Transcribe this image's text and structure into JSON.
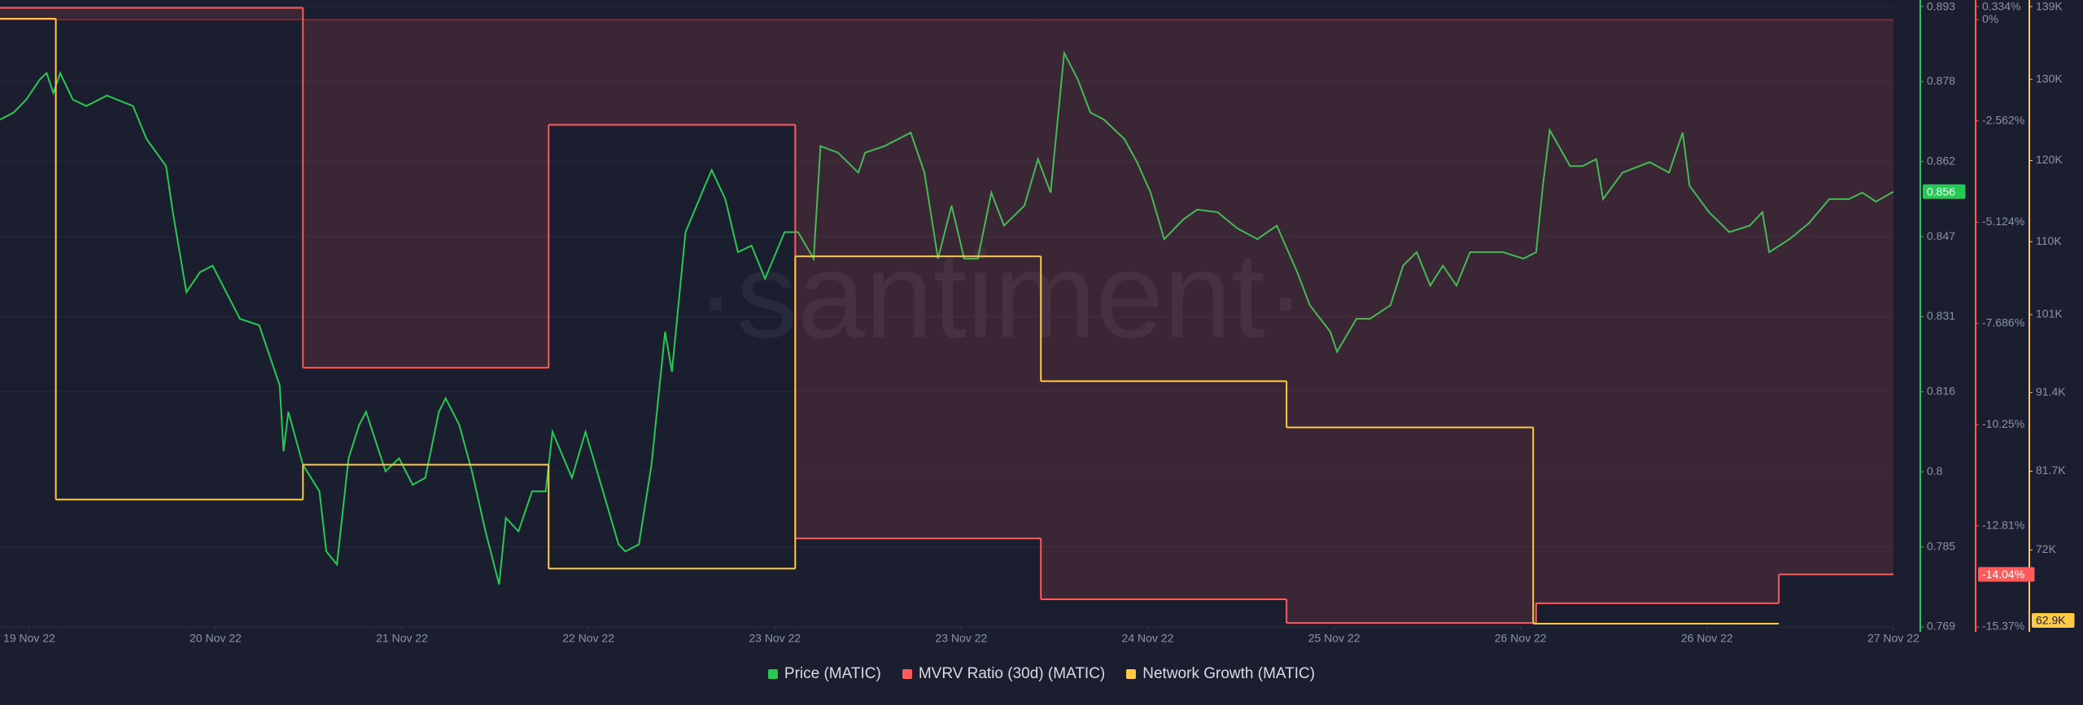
{
  "chart_data": {
    "type": "line",
    "watermark": "·santiment·",
    "xlim": [
      -3,
      192
    ],
    "xticks": [
      {
        "value": 0,
        "label": "19 Nov 22"
      },
      {
        "value": 19.2,
        "label": "20 Nov 22"
      },
      {
        "value": 38.4,
        "label": "21 Nov 22"
      },
      {
        "value": 57.6,
        "label": "22 Nov 22"
      },
      {
        "value": 76.8,
        "label": "23 Nov 22"
      },
      {
        "value": 96,
        "label": "23 Nov 22"
      },
      {
        "value": 115.2,
        "label": "24 Nov 22"
      },
      {
        "value": 134.4,
        "label": "25 Nov 22"
      },
      {
        "value": 153.6,
        "label": "26 Nov 22"
      },
      {
        "value": 172.8,
        "label": "26 Nov 22"
      },
      {
        "value": 192,
        "label": "27 Nov 22"
      }
    ],
    "ylim": [
      0.769,
      0.893
    ],
    "yticks": [
      0.893,
      0.878,
      0.862,
      0.847,
      0.831,
      0.816,
      {
        "value": 0.8,
        "label": "0.8"
      },
      0.785,
      0.769
    ],
    "y2lim": [
      -15.37,
      0.334
    ],
    "y2ticks": [
      {
        "value": 0.334,
        "label": "0.334%"
      },
      {
        "value": 0,
        "label": "0%"
      },
      {
        "value": -2.562,
        "label": "-2.562%"
      },
      {
        "value": -5.124,
        "label": "-5.124%"
      },
      {
        "value": -7.686,
        "label": "-7.686%"
      },
      {
        "value": -10.25,
        "label": "-10.25%"
      },
      {
        "value": -12.81,
        "label": "-12.81%"
      },
      {
        "value": -15.37,
        "label": "-15.37%"
      }
    ],
    "y3lim": [
      62500,
      139000
    ],
    "y3ticks": [
      {
        "value": 139000,
        "label": "139K"
      },
      {
        "value": 130000,
        "label": "130K"
      },
      {
        "value": 120000,
        "label": "120K"
      },
      {
        "value": 110000,
        "label": "110K"
      },
      {
        "value": 101000,
        "label": "101K"
      },
      {
        "value": 91400,
        "label": "91.4K"
      },
      {
        "value": 81700,
        "label": "81.7K"
      },
      {
        "value": 72000,
        "label": "72K"
      }
    ],
    "grid": true,
    "series": [
      {
        "name": "Price (MATIC)",
        "color": "#26c953",
        "axis": "y",
        "style": "line",
        "current_label": "0.856",
        "x": [
          -3,
          -1.6,
          -0.3,
          1.1,
          1.8,
          2.5,
          3.2,
          4.5,
          5.9,
          8.0,
          10.7,
          12.1,
          14.1,
          14.8,
          16.2,
          17.6,
          18.9,
          20.3,
          21.7,
          23.7,
          25.1,
          25.8,
          26.2,
          26.7,
          28.2,
          29.9,
          30.6,
          31.7,
          32.9,
          34.0,
          34.7,
          36.7,
          38.1,
          39.5,
          40.8,
          42.2,
          42.9,
          44.3,
          45.6,
          47.0,
          48.4,
          49.1,
          50.4,
          51.8,
          53.2,
          53.9,
          55.9,
          57.3,
          59.3,
          60.7,
          61.4,
          62.8,
          64.1,
          65.5,
          66.2,
          67.6,
          69.6,
          70.3,
          71.7,
          73.0,
          74.4,
          75.8,
          77.8,
          79.2,
          80.8,
          81.5,
          83.3,
          85.4,
          86.1,
          88.1,
          90.8,
          92.2,
          93.6,
          95.0,
          96.3,
          97.7,
          99.1,
          100.4,
          102.5,
          103.9,
          105.2,
          106.6,
          108.0,
          109.3,
          110.7,
          112.8,
          114.1,
          115.5,
          116.9,
          118.9,
          120.3,
          122.4,
          124.4,
          126.5,
          128.5,
          130.6,
          131.9,
          134.0,
          134.7,
          136.7,
          138.1,
          140.2,
          141.5,
          142.9,
          144.3,
          145.6,
          147.0,
          148.4,
          150.4,
          151.8,
          153.9,
          155.2,
          155.9,
          156.6,
          158.7,
          160.0,
          161.4,
          162.1,
          164.1,
          166.9,
          168.9,
          170.3,
          171.0,
          173.0,
          175.1,
          177.2,
          178.5,
          179.2,
          181.3,
          183.3,
          185.4,
          187.4,
          188.8,
          190.2,
          192.0
        ],
        "values": [
          0.8704,
          0.8718,
          0.8744,
          0.8784,
          0.8797,
          0.8757,
          0.8797,
          0.8744,
          0.8731,
          0.8752,
          0.8731,
          0.8665,
          0.8611,
          0.8519,
          0.8359,
          0.8399,
          0.8412,
          0.8359,
          0.8306,
          0.8293,
          0.8213,
          0.8173,
          0.8041,
          0.812,
          0.8014,
          0.7961,
          0.7841,
          0.7815,
          0.8027,
          0.8094,
          0.812,
          0.8001,
          0.8027,
          0.7974,
          0.7988,
          0.812,
          0.8147,
          0.8094,
          0.8001,
          0.7881,
          0.7775,
          0.7908,
          0.7881,
          0.7961,
          0.7961,
          0.808,
          0.7988,
          0.808,
          0.7948,
          0.7855,
          0.7841,
          0.7855,
          0.8014,
          0.828,
          0.82,
          0.8479,
          0.8572,
          0.8603,
          0.8545,
          0.8439,
          0.8452,
          0.8386,
          0.8479,
          0.8479,
          0.8426,
          0.8651,
          0.8638,
          0.8598,
          0.8638,
          0.8651,
          0.8678,
          0.8598,
          0.8426,
          0.8532,
          0.8426,
          0.8426,
          0.8558,
          0.8492,
          0.8532,
          0.8625,
          0.8558,
          0.8837,
          0.8784,
          0.8718,
          0.8704,
          0.8665,
          0.8619,
          0.8558,
          0.8465,
          0.8505,
          0.8524,
          0.8519,
          0.8487,
          0.8465,
          0.8492,
          0.8399,
          0.8333,
          0.828,
          0.824,
          0.8306,
          0.8306,
          0.8333,
          0.8412,
          0.8439,
          0.8372,
          0.8412,
          0.8372,
          0.8439,
          0.8439,
          0.8439,
          0.8426,
          0.8439,
          0.8572,
          0.8683,
          0.8611,
          0.8611,
          0.8625,
          0.8545,
          0.8598,
          0.8619,
          0.8598,
          0.8678,
          0.8572,
          0.8519,
          0.8479,
          0.8492,
          0.8519,
          0.8439,
          0.8465,
          0.8497,
          0.8545,
          0.8545,
          0.8558,
          0.854,
          0.856
        ]
      },
      {
        "name": "MVRV Ratio (30d) (MATIC)",
        "color": "#ff5b5b",
        "axis": "y2",
        "style": "step-area",
        "current_label": "-14.04%",
        "x": [
          -3,
          28.2,
          53.5,
          78.9,
          104.2,
          129.5,
          155.2,
          180.2
        ],
        "values": [
          0.3,
          -8.81,
          -2.66,
          -13.13,
          -14.67,
          -15.27,
          -14.77,
          -14.04
        ]
      },
      {
        "name": "Network Growth (MATIC)",
        "color": "#ffcb47",
        "axis": "y3",
        "style": "step",
        "current_label": "62.9K",
        "x": [
          -3,
          2.75,
          28.2,
          53.5,
          78.9,
          104.2,
          129.5,
          154.9,
          180.2
        ],
        "values": [
          137500,
          78200,
          82500,
          69700,
          108200,
          92800,
          87100,
          62900,
          62900
        ]
      }
    ]
  }
}
